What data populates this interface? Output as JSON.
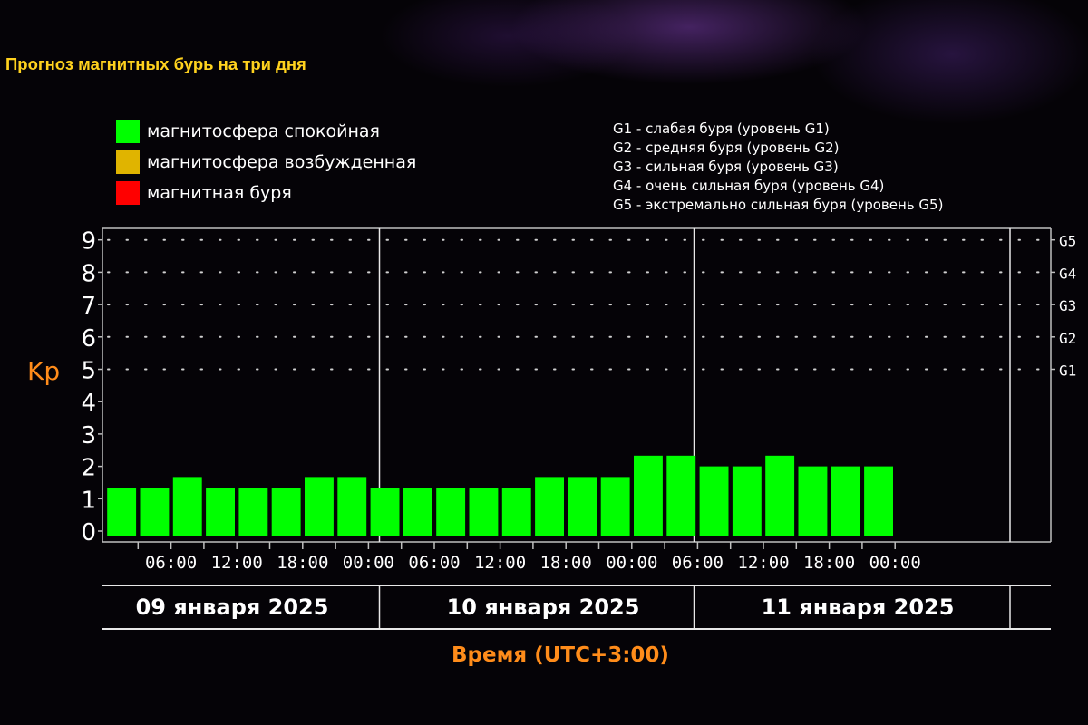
{
  "title": "Прогноз магнитных бурь на три дня",
  "legend": [
    {
      "label": "магнитосфера спокойная",
      "color": "#00ff00"
    },
    {
      "label": "магнитосфера возбужденная",
      "color": "#e0b400"
    },
    {
      "label": "магнитная буря",
      "color": "#ff0000"
    }
  ],
  "g_legend": [
    "G1 - слабая буря (уровень G1)",
    "G2 - средняя буря (уровень G2)",
    "G3 - сильная буря (уровень G3)",
    "G4 - очень сильная буря (уровень G4)",
    "G5 - экстремально сильная буря (уровень G5)"
  ],
  "chart_data": {
    "type": "bar",
    "ylabel": "Kp",
    "xlabel": "Время (UTC+3:00)",
    "ylim": [
      0,
      9
    ],
    "yticks": [
      "0",
      "1",
      "2",
      "3",
      "4",
      "5",
      "6",
      "7",
      "8",
      "9"
    ],
    "storm_levels": [
      {
        "label": "G1",
        "kp": 5
      },
      {
        "label": "G2",
        "kp": 6
      },
      {
        "label": "G3",
        "kp": 7
      },
      {
        "label": "G4",
        "kp": 8
      },
      {
        "label": "G5",
        "kp": 9
      }
    ],
    "xtick_labels": [
      "06:00",
      "12:00",
      "18:00",
      "00:00",
      "06:00",
      "12:00",
      "18:00",
      "00:00",
      "06:00",
      "12:00",
      "18:00",
      "00:00"
    ],
    "days": [
      "09 января 2025",
      "10 января 2025",
      "11 января 2025"
    ],
    "values": [
      1.33,
      1.33,
      1.67,
      1.33,
      1.33,
      1.33,
      1.67,
      1.67,
      1.33,
      1.33,
      1.33,
      1.33,
      1.33,
      1.67,
      1.67,
      1.67,
      2.33,
      2.33,
      2.0,
      2.0,
      2.33,
      2.0,
      2.0,
      2.0
    ],
    "bar_color": "#00ff00",
    "grid": true
  }
}
